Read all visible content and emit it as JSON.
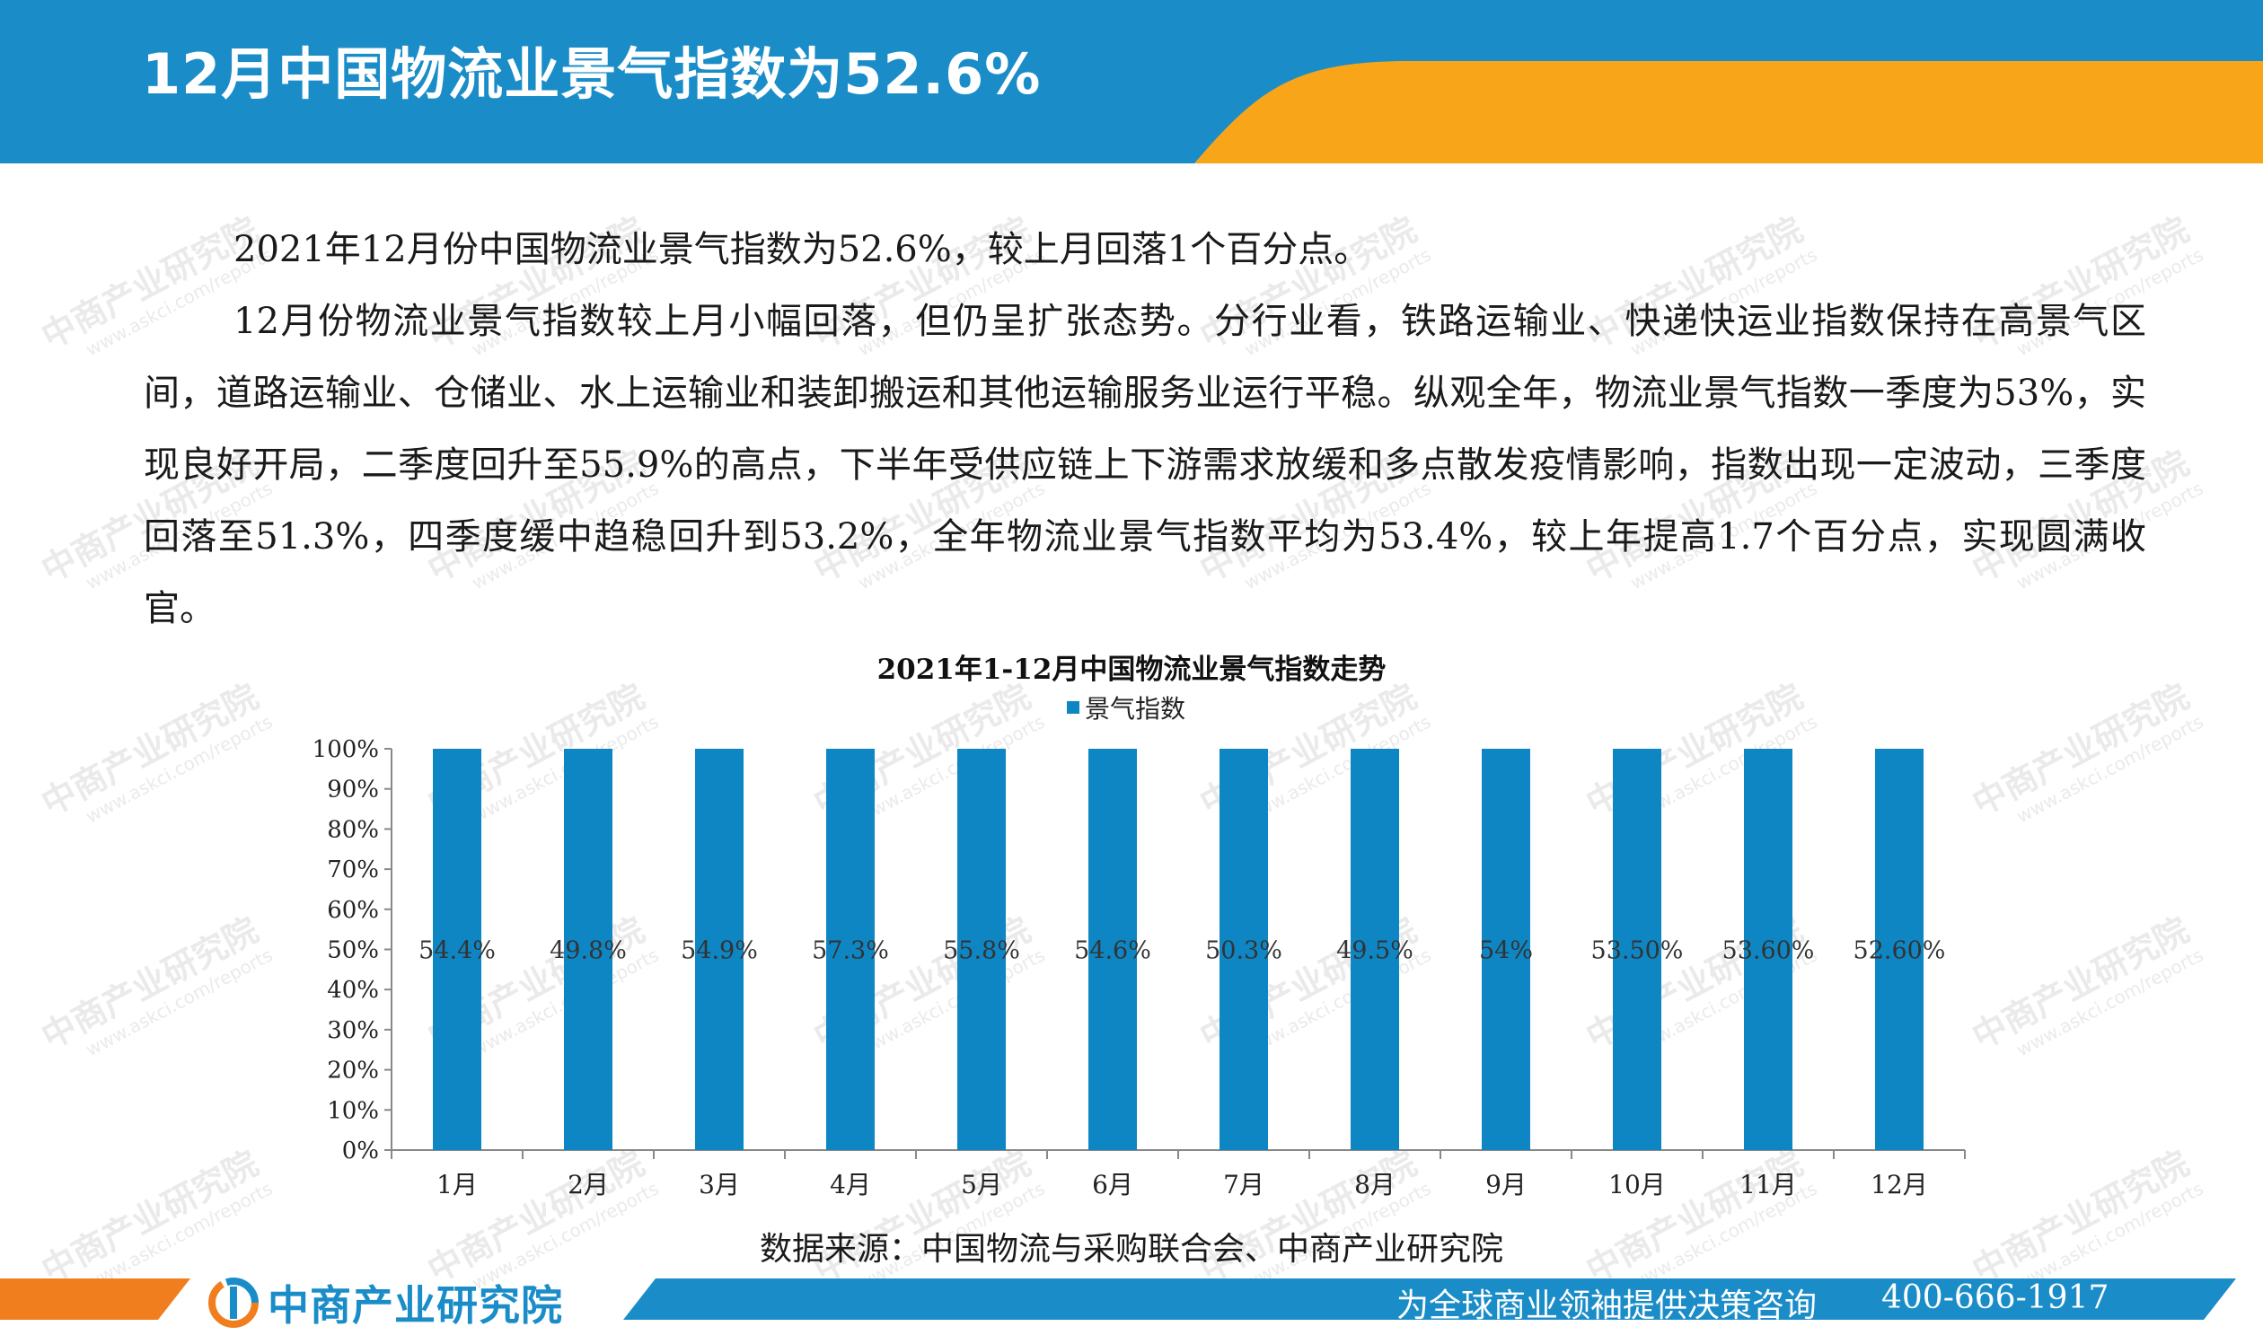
{
  "header": {
    "title": "12月中国物流业景气指数为52.6%"
  },
  "colors": {
    "header_blue": "#1a8dc8",
    "header_orange": "#f9a51a",
    "bar_blue": "#0e86c4",
    "footer_orange": "#f07e1f"
  },
  "watermark": {
    "name": "中商产业研究院",
    "url": "www.askci.com/reports"
  },
  "body": {
    "paragraphs": [
      "2021年12月份中国物流业景气指数为52.6%，较上月回落1个百分点。",
      "12月份物流业景气指数较上月小幅回落，但仍呈扩张态势。分行业看，铁路运输业、快递快运业指数保持在高景气区间，道路运输业、仓储业、水上运输业和装卸搬运和其他运输服务业运行平稳。纵观全年，物流业景气指数一季度为53%，实现良好开局，二季度回升至55.9%的高点，下半年受供应链上下游需求放缓和多点散发疫情影响，指数出现一定波动，三季度回落至51.3%，四季度缓中趋稳回升到53.2%，全年物流业景气指数平均为53.4%，较上年提高1.7个百分点，实现圆满收官。"
    ]
  },
  "chart_data": {
    "type": "bar",
    "title": "2021年1-12月中国物流业景气指数走势",
    "categories": [
      "1月",
      "2月",
      "3月",
      "4月",
      "5月",
      "6月",
      "7月",
      "8月",
      "9月",
      "10月",
      "11月",
      "12月"
    ],
    "series": [
      {
        "name": "景气指数",
        "values": [
          54.4,
          49.8,
          54.9,
          57.3,
          55.8,
          54.6,
          50.3,
          49.5,
          54,
          53.5,
          53.6,
          52.6
        ],
        "labels": [
          "54.4%",
          "49.8%",
          "54.9%",
          "57.3%",
          "55.8%",
          "54.6%",
          "50.3%",
          "49.5%",
          "54%",
          "53.50%",
          "53.60%",
          "52.60%"
        ],
        "display_fill_percent": [
          100,
          100,
          100,
          100,
          100,
          100,
          100,
          100,
          100,
          100,
          100,
          100
        ]
      }
    ],
    "yticks": [
      "0%",
      "10%",
      "20%",
      "30%",
      "40%",
      "50%",
      "60%",
      "70%",
      "80%",
      "90%",
      "100%"
    ],
    "ylim": [
      0,
      100
    ],
    "grid": false,
    "legend": "top-center",
    "data_label_position": "center"
  },
  "source": "数据来源：中国物流与采购联合会、中商产业研究院",
  "footer": {
    "logo_text": "中商产业研究院",
    "slogan": "为全球商业领袖提供决策咨询",
    "phone": "400-666-1917"
  }
}
